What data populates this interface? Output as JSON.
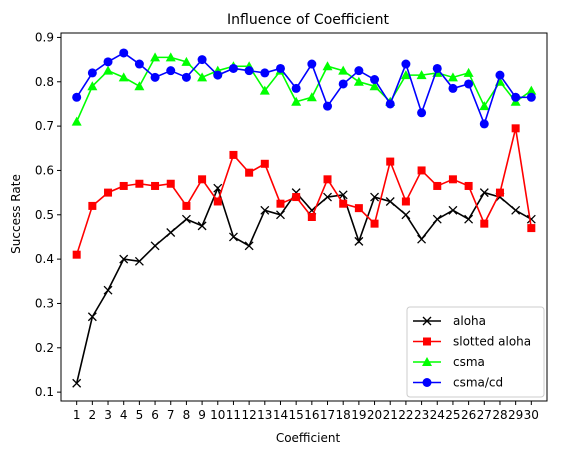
{
  "chart_data": {
    "type": "line",
    "title": "Influence of Coefficient",
    "xlabel": "Coefficient",
    "ylabel": "Success Rate",
    "x": [
      1,
      2,
      3,
      4,
      5,
      6,
      7,
      8,
      9,
      10,
      11,
      12,
      13,
      14,
      15,
      16,
      17,
      18,
      19,
      20,
      21,
      22,
      23,
      24,
      25,
      26,
      27,
      28,
      29,
      30
    ],
    "xlim": [
      0,
      31
    ],
    "ylim": [
      0.08,
      0.91
    ],
    "yticks": [
      0.1,
      0.2,
      0.3,
      0.4,
      0.5,
      0.6,
      0.7,
      0.8,
      0.9
    ],
    "ytick_labels": [
      "0.1",
      "0.2",
      "0.3",
      "0.4",
      "0.5",
      "0.6",
      "0.7",
      "0.8",
      "0.9"
    ],
    "grid": false,
    "legend_position": "lower-right",
    "series": [
      {
        "name": "aloha",
        "color": "#000000",
        "marker": "x",
        "values": [
          0.12,
          0.27,
          0.33,
          0.4,
          0.395,
          0.43,
          0.46,
          0.49,
          0.475,
          0.56,
          0.45,
          0.43,
          0.51,
          0.5,
          0.55,
          0.51,
          0.54,
          0.545,
          0.44,
          0.54,
          0.53,
          0.5,
          0.445,
          0.49,
          0.51,
          0.49,
          0.55,
          0.54,
          0.51,
          0.49
        ]
      },
      {
        "name": "slotted aloha",
        "color": "#ff0000",
        "marker": "square",
        "values": [
          0.41,
          0.52,
          0.55,
          0.565,
          0.57,
          0.565,
          0.57,
          0.52,
          0.58,
          0.53,
          0.635,
          0.595,
          0.615,
          0.525,
          0.54,
          0.495,
          0.58,
          0.525,
          0.515,
          0.48,
          0.62,
          0.53,
          0.6,
          0.565,
          0.58,
          0.565,
          0.48,
          0.55,
          0.695,
          0.47
        ]
      },
      {
        "name": "csma",
        "color": "#00ff00",
        "marker": "triangle",
        "values": [
          0.71,
          0.79,
          0.825,
          0.81,
          0.79,
          0.855,
          0.855,
          0.845,
          0.81,
          0.825,
          0.835,
          0.835,
          0.78,
          0.825,
          0.755,
          0.765,
          0.835,
          0.825,
          0.8,
          0.79,
          0.755,
          0.815,
          0.815,
          0.82,
          0.81,
          0.82,
          0.745,
          0.8,
          0.755,
          0.78
        ]
      },
      {
        "name": "csma/cd",
        "color": "#0000ff",
        "marker": "circle",
        "values": [
          0.765,
          0.82,
          0.845,
          0.865,
          0.84,
          0.81,
          0.825,
          0.81,
          0.85,
          0.815,
          0.83,
          0.825,
          0.82,
          0.83,
          0.785,
          0.84,
          0.745,
          0.795,
          0.825,
          0.805,
          0.75,
          0.84,
          0.73,
          0.83,
          0.785,
          0.795,
          0.705,
          0.815,
          0.765,
          0.765
        ]
      }
    ]
  }
}
